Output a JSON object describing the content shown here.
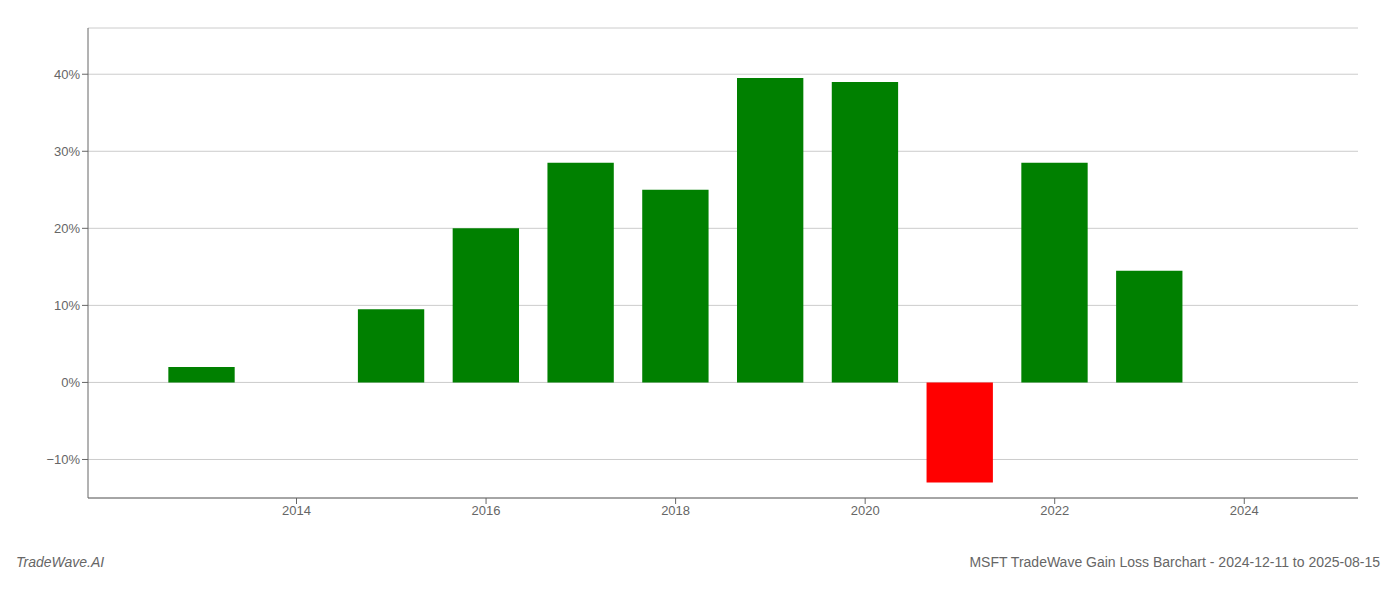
{
  "chart_data": {
    "type": "bar",
    "x": [
      2013,
      2015,
      2016,
      2017,
      2018,
      2019,
      2020,
      2021,
      2022,
      2023
    ],
    "values": [
      2.0,
      9.5,
      20.0,
      28.5,
      25.0,
      39.5,
      39.0,
      -13.0,
      28.5,
      14.5
    ],
    "colors": [
      "#008000",
      "#008000",
      "#008000",
      "#008000",
      "#008000",
      "#008000",
      "#008000",
      "#ff0000",
      "#008000",
      "#008000"
    ],
    "xlim": [
      2011.8,
      2025.2
    ],
    "xticks": [
      2014,
      2016,
      2018,
      2020,
      2022,
      2024
    ],
    "ylim": [
      -15,
      46
    ],
    "yticks": [
      {
        "value": -10,
        "label": "−10%"
      },
      {
        "value": 0,
        "label": "0%"
      },
      {
        "value": 10,
        "label": "10%"
      },
      {
        "value": 20,
        "label": "20%"
      },
      {
        "value": 30,
        "label": "30%"
      },
      {
        "value": 40,
        "label": "40%"
      }
    ],
    "grid": true,
    "annotations": [
      "TradeWave.AI",
      "MSFT TradeWave Gain Loss Barchart - 2024-12-11 to 2025-08-15"
    ]
  }
}
